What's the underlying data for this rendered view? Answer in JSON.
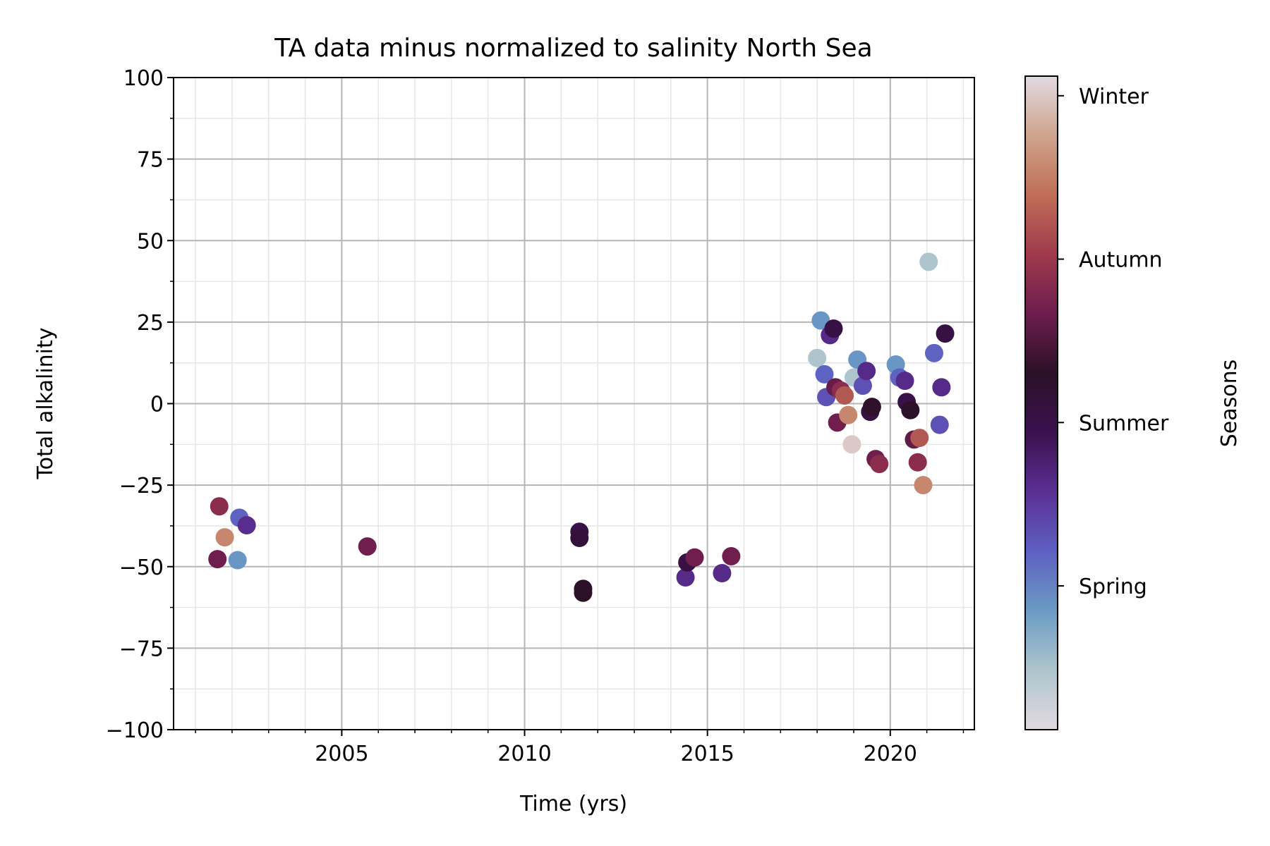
{
  "chart_data": {
    "type": "scatter",
    "title": "TA data minus normalized to salinity North Sea",
    "xlabel": "Time (yrs)",
    "ylabel": "Total alkalinity",
    "xlim": [
      2000.4,
      2022.3
    ],
    "ylim": [
      -100,
      100
    ],
    "x_ticks": [
      2005,
      2010,
      2015,
      2020
    ],
    "x_tick_labels": [
      "2005",
      "2010",
      "2015",
      "2020"
    ],
    "y_ticks": [
      -100,
      -75,
      -50,
      -25,
      0,
      25,
      50,
      75,
      100
    ],
    "y_tick_labels": [
      "−100",
      "−75",
      "−50",
      "−25",
      "0",
      "25",
      "50",
      "75",
      "100"
    ],
    "grid": true,
    "colorbar": {
      "label": "Seasons",
      "range": [
        0,
        1
      ],
      "ticks": [
        0.97,
        0.72,
        0.47,
        0.22
      ],
      "tick_labels": [
        "Winter",
        "Autumn",
        "Summer",
        "Spring"
      ],
      "colormap": "twilight_shifted",
      "stops": [
        "#e2d9e2",
        "#aec5cd",
        "#6a9bc4",
        "#5e60c1",
        "#5b2f94",
        "#3b114f",
        "#2c1127",
        "#6d1d4e",
        "#9f3a4c",
        "#c06e56",
        "#cfa48d",
        "#e2d9e2"
      ]
    },
    "points": [
      {
        "x": 2001.65,
        "y": -31.5,
        "c": 0.69
      },
      {
        "x": 2001.6,
        "y": -47.7,
        "c": 0.64
      },
      {
        "x": 2001.8,
        "y": -41.0,
        "c": 0.86
      },
      {
        "x": 2002.2,
        "y": -35.0,
        "c": 0.27
      },
      {
        "x": 2002.15,
        "y": -48.0,
        "c": 0.19
      },
      {
        "x": 2002.4,
        "y": -37.3,
        "c": 0.37
      },
      {
        "x": 2005.7,
        "y": -43.8,
        "c": 0.64
      },
      {
        "x": 2011.5,
        "y": -39.3,
        "c": 0.47
      },
      {
        "x": 2011.5,
        "y": -41.2,
        "c": 0.5
      },
      {
        "x": 2011.6,
        "y": -56.8,
        "c": 0.54
      },
      {
        "x": 2011.6,
        "y": -58.0,
        "c": 0.54
      },
      {
        "x": 2014.4,
        "y": -53.3,
        "c": 0.38
      },
      {
        "x": 2014.45,
        "y": -48.7,
        "c": 0.48
      },
      {
        "x": 2014.65,
        "y": -47.2,
        "c": 0.64
      },
      {
        "x": 2015.4,
        "y": -52.0,
        "c": 0.38
      },
      {
        "x": 2015.65,
        "y": -46.8,
        "c": 0.64
      },
      {
        "x": 2018.0,
        "y": 14.0,
        "c": 0.09
      },
      {
        "x": 2018.1,
        "y": 25.5,
        "c": 0.19
      },
      {
        "x": 2018.2,
        "y": 9.0,
        "c": 0.27
      },
      {
        "x": 2018.25,
        "y": 2.0,
        "c": 0.3
      },
      {
        "x": 2018.35,
        "y": 21.0,
        "c": 0.38
      },
      {
        "x": 2018.45,
        "y": 23.0,
        "c": 0.48
      },
      {
        "x": 2018.5,
        "y": 5.0,
        "c": 0.63
      },
      {
        "x": 2018.55,
        "y": -5.8,
        "c": 0.64
      },
      {
        "x": 2018.65,
        "y": 4.0,
        "c": 0.69
      },
      {
        "x": 2018.75,
        "y": 2.5,
        "c": 0.78
      },
      {
        "x": 2018.85,
        "y": -3.5,
        "c": 0.86
      },
      {
        "x": 2018.95,
        "y": -12.5,
        "c": 0.97
      },
      {
        "x": 2019.0,
        "y": 8.0,
        "c": 0.09
      },
      {
        "x": 2019.1,
        "y": 13.5,
        "c": 0.19
      },
      {
        "x": 2019.25,
        "y": 5.5,
        "c": 0.3
      },
      {
        "x": 2019.35,
        "y": 10.0,
        "c": 0.38
      },
      {
        "x": 2019.45,
        "y": -2.5,
        "c": 0.48
      },
      {
        "x": 2019.5,
        "y": -1.0,
        "c": 0.53
      },
      {
        "x": 2019.6,
        "y": -17.0,
        "c": 0.64
      },
      {
        "x": 2019.7,
        "y": -18.5,
        "c": 0.69
      },
      {
        "x": 2020.15,
        "y": 12.0,
        "c": 0.19
      },
      {
        "x": 2020.25,
        "y": 8.0,
        "c": 0.27
      },
      {
        "x": 2020.4,
        "y": 7.0,
        "c": 0.38
      },
      {
        "x": 2020.45,
        "y": 0.5,
        "c": 0.47
      },
      {
        "x": 2020.55,
        "y": -2.0,
        "c": 0.54
      },
      {
        "x": 2020.65,
        "y": -11.0,
        "c": 0.62
      },
      {
        "x": 2020.75,
        "y": -18.0,
        "c": 0.69
      },
      {
        "x": 2020.8,
        "y": -10.5,
        "c": 0.78
      },
      {
        "x": 2020.9,
        "y": -25.0,
        "c": 0.86
      },
      {
        "x": 2021.05,
        "y": 43.5,
        "c": 0.09
      },
      {
        "x": 2021.2,
        "y": 15.5,
        "c": 0.27
      },
      {
        "x": 2021.35,
        "y": -6.5,
        "c": 0.3
      },
      {
        "x": 2021.4,
        "y": 5.0,
        "c": 0.38
      },
      {
        "x": 2021.5,
        "y": 21.5,
        "c": 0.48
      }
    ]
  }
}
